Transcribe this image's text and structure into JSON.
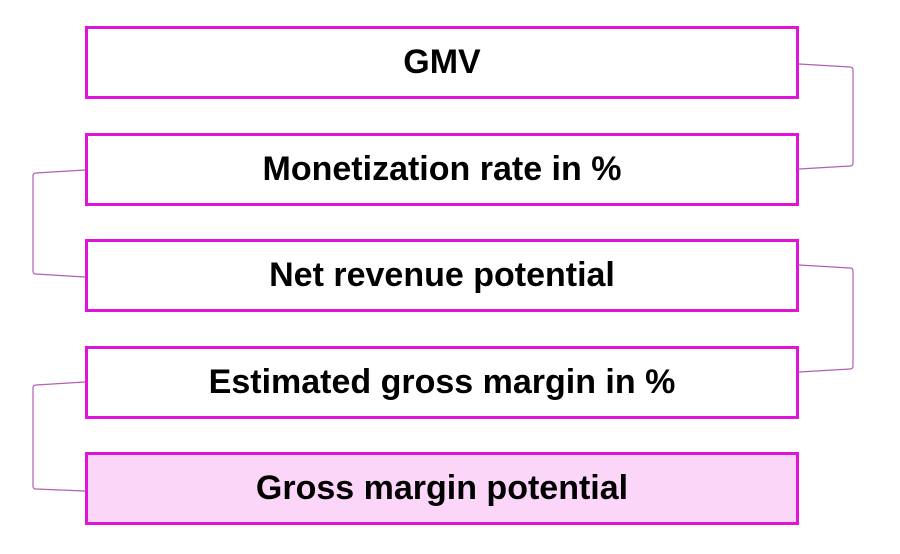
{
  "diagram": {
    "steps": [
      {
        "label": "GMV",
        "highlighted": false
      },
      {
        "label": "Monetization rate in %",
        "highlighted": false
      },
      {
        "label": "Net revenue potential",
        "highlighted": false
      },
      {
        "label": "Estimated gross margin in %",
        "highlighted": false
      },
      {
        "label": "Gross margin potential",
        "highlighted": true
      }
    ],
    "colors": {
      "box_border": "#e014d8",
      "highlight_fill": "#fbd6f8",
      "connector": "#b35fb0",
      "text": "#000000"
    }
  }
}
